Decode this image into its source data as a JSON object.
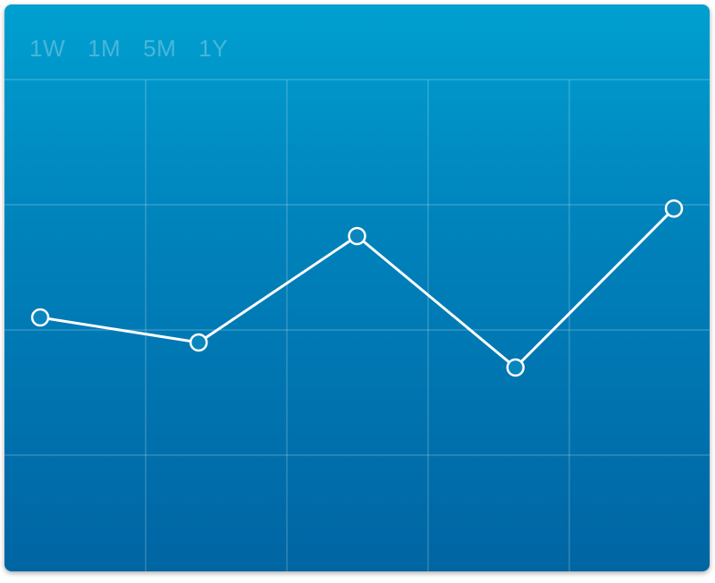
{
  "range_tabs": [
    {
      "label": "1W"
    },
    {
      "label": "1M"
    },
    {
      "label": "5M"
    },
    {
      "label": "1Y"
    }
  ],
  "colors": {
    "background_top": "#00a0d0",
    "background_bottom": "#0065a3",
    "line": "#ffffff",
    "grid": "rgba(255,255,255,0.3)"
  },
  "chart_data": {
    "type": "line",
    "grid": true,
    "ylim": [
      0,
      4
    ],
    "x": [
      0,
      1,
      2,
      3,
      4
    ],
    "series": [
      {
        "values": [
          2.1,
          1.9,
          2.75,
          1.7,
          2.97
        ]
      }
    ]
  }
}
